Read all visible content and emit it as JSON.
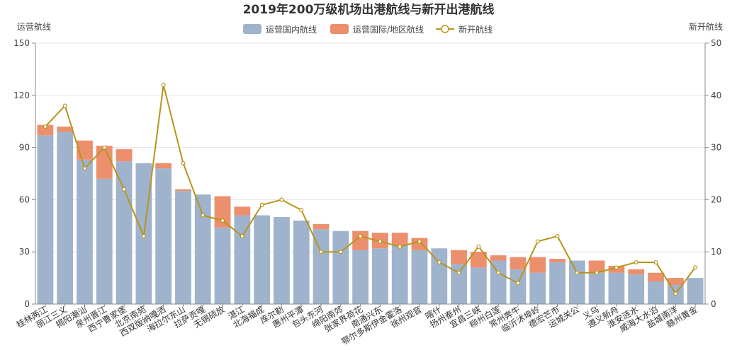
{
  "chart_data": {
    "type": "bar",
    "title": "2019年200万级机场出港航线与新开出港航线",
    "ylabel": "运营航线",
    "y2label": "新开航线",
    "ylim": [
      0,
      150
    ],
    "y2lim": [
      0,
      50
    ],
    "yticks": [
      0,
      30,
      60,
      90,
      120,
      150
    ],
    "y2ticks": [
      0,
      10,
      20,
      30,
      40,
      50
    ],
    "grid": true,
    "legend_position": "top-center",
    "stacked": true,
    "categories": [
      "桂林两江",
      "丽江三义",
      "揭阳潮汕",
      "泉州晋江",
      "西宁曹家堡",
      "北京南苑",
      "西双版纳嘎洒",
      "海拉尔东山",
      "拉萨贡嘎",
      "无锡硕放",
      "湛江",
      "北海福成",
      "库尔勒",
      "惠州平潭",
      "包头东河",
      "绵阳南郊",
      "张家界荷花",
      "南通兴东",
      "鄂尔多斯伊金霍洛",
      "徐州观音",
      "喀什",
      "扬州泰州",
      "宜昌三峡",
      "柳州白莲",
      "常州奔牛",
      "临沂沭埠岭",
      "德宏芒市",
      "运城关公",
      "义乌",
      "遵义新舟",
      "淮安涟水",
      "威海大水泊",
      "盐城南洋",
      "赣州黄金"
    ],
    "series": [
      {
        "name": "运营国内航线",
        "type": "bar",
        "color": "#9fb3cc",
        "values": [
          97,
          99,
          83,
          72,
          82,
          81,
          78,
          65,
          63,
          44,
          51,
          51,
          50,
          48,
          43,
          42,
          31,
          32,
          34,
          31,
          32,
          23,
          21,
          25,
          20,
          18,
          24,
          25,
          18,
          18,
          17,
          13,
          11,
          15
        ]
      },
      {
        "name": "运营国际/地区航线",
        "type": "bar",
        "color": "#ec8f6d",
        "values": [
          6,
          3,
          11,
          19,
          7,
          0,
          3,
          1,
          0,
          18,
          5,
          0,
          0,
          0,
          3,
          0,
          11,
          9,
          7,
          7,
          0,
          8,
          9,
          3,
          7,
          9,
          2,
          0,
          7,
          4,
          3,
          5,
          4,
          0
        ]
      },
      {
        "name": "新开航线",
        "type": "line",
        "axis": "right",
        "color": "#b8941b",
        "values": [
          34,
          38,
          26,
          30,
          22,
          13,
          42,
          27,
          17,
          16,
          13,
          19,
          20,
          18,
          10,
          10,
          13,
          12,
          11,
          12,
          8,
          6,
          11,
          6,
          4,
          12,
          13,
          6,
          6,
          7,
          8,
          8,
          2,
          7
        ]
      }
    ]
  }
}
